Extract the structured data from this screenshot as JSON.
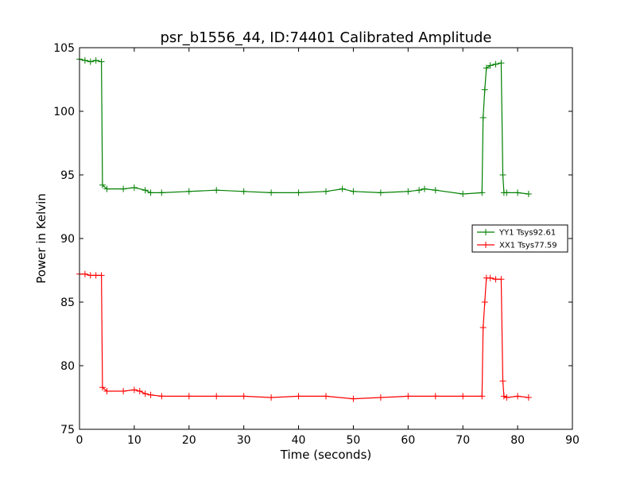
{
  "chart_data": {
    "type": "line",
    "title": "psr_b1556_44, ID:74401 Calibrated Amplitude",
    "xlabel": "Time (seconds)",
    "ylabel": "Power in Kelvin",
    "xlim": [
      0,
      90
    ],
    "ylim": [
      75,
      105
    ],
    "xticks": [
      "0",
      "10",
      "20",
      "30",
      "40",
      "50",
      "60",
      "70",
      "80",
      "90"
    ],
    "yticks": [
      "75",
      "80",
      "85",
      "90",
      "95",
      "100",
      "105"
    ],
    "grid": false,
    "legend_position": "right",
    "series": [
      {
        "name": "YY1 Tsys92.61",
        "color": "#008000",
        "marker": "+",
        "x": [
          0,
          1,
          2,
          3,
          4.0,
          4.2,
          5,
          8,
          10,
          12,
          13,
          15,
          20,
          25,
          30,
          35,
          40,
          45,
          48,
          50,
          55,
          60,
          62,
          63,
          65,
          70,
          73.5,
          73.7,
          74.0,
          74.3,
          75,
          76,
          77.0,
          77.3,
          77.5,
          78,
          80,
          82
        ],
        "y": [
          104.1,
          104.0,
          103.9,
          104.0,
          103.9,
          94.2,
          93.9,
          93.9,
          94.0,
          93.8,
          93.6,
          93.6,
          93.7,
          93.8,
          93.7,
          93.6,
          93.6,
          93.7,
          93.9,
          93.7,
          93.6,
          93.7,
          93.8,
          93.9,
          93.8,
          93.5,
          93.6,
          99.5,
          101.7,
          103.4,
          103.6,
          103.7,
          103.8,
          95.0,
          93.6,
          93.6,
          93.6,
          93.5
        ]
      },
      {
        "name": "XX1 Tsys77.59",
        "color": "#ff0000",
        "marker": "+",
        "x": [
          0,
          1,
          2,
          3,
          4.0,
          4.2,
          5,
          8,
          10,
          11,
          12,
          13,
          15,
          20,
          25,
          30,
          35,
          40,
          45,
          50,
          55,
          60,
          65,
          70,
          73.5,
          73.7,
          74.0,
          74.3,
          75,
          76,
          77.0,
          77.3,
          77.5,
          78,
          80,
          82
        ],
        "y": [
          87.2,
          87.2,
          87.1,
          87.1,
          87.1,
          78.3,
          78.0,
          78.0,
          78.1,
          78.0,
          77.8,
          77.7,
          77.6,
          77.6,
          77.6,
          77.6,
          77.5,
          77.6,
          77.6,
          77.4,
          77.5,
          77.6,
          77.6,
          77.6,
          77.6,
          83.0,
          85.0,
          86.9,
          86.9,
          86.8,
          86.8,
          78.8,
          77.6,
          77.5,
          77.6,
          77.5
        ]
      }
    ]
  }
}
